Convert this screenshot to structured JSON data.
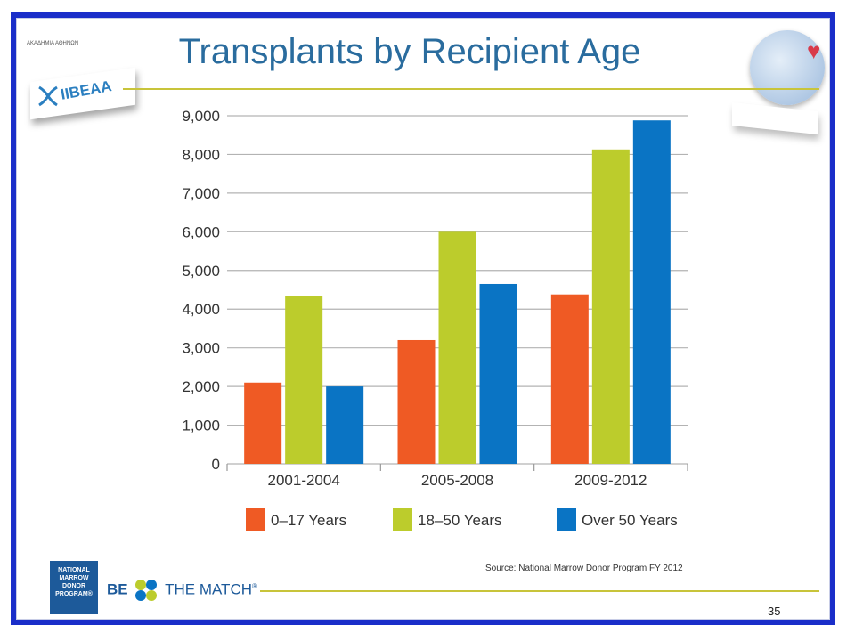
{
  "slide": {
    "title": "Transplants by Recipient Age",
    "source": "Source: National Marrow Donor Program FY 2012",
    "page_number": "35",
    "logos": {
      "top_left_academy": "ΑΚΑΔΗΜΙΑ ΑΘΗΝΩΝ",
      "top_left_brand": "IIBEAA",
      "bottom_left_org_lines": [
        "NATIONAL",
        "MARROW",
        "DONOR",
        "PROGRAM®"
      ],
      "bottom_be": "BE",
      "bottom_match": "THE MATCH",
      "bottom_reg": "®"
    },
    "colors": {
      "frame": "#1a2ec9",
      "title": "#2a6c9e",
      "rule": "#c8c43a"
    }
  },
  "chart_data": {
    "type": "bar",
    "title": "Transplants by Recipient Age",
    "categories": [
      "2001-2004",
      "2005-2008",
      "2009-2012"
    ],
    "series": [
      {
        "name": "0–17 Years",
        "color": "#ef5a24",
        "values": [
          2100,
          3200,
          4380
        ]
      },
      {
        "name": "18–50 Years",
        "color": "#bccc2c",
        "values": [
          4330,
          6000,
          8130
        ]
      },
      {
        "name": "Over 50 Years",
        "color": "#0a74c4",
        "values": [
          2000,
          4650,
          8880
        ]
      }
    ],
    "yticks": [
      "0",
      "1,000",
      "2,000",
      "3,000",
      "4,000",
      "5,000",
      "6,000",
      "7,000",
      "8,000",
      "9,000"
    ],
    "ylim": [
      0,
      9000
    ],
    "grid": true,
    "legend_position": "bottom"
  }
}
